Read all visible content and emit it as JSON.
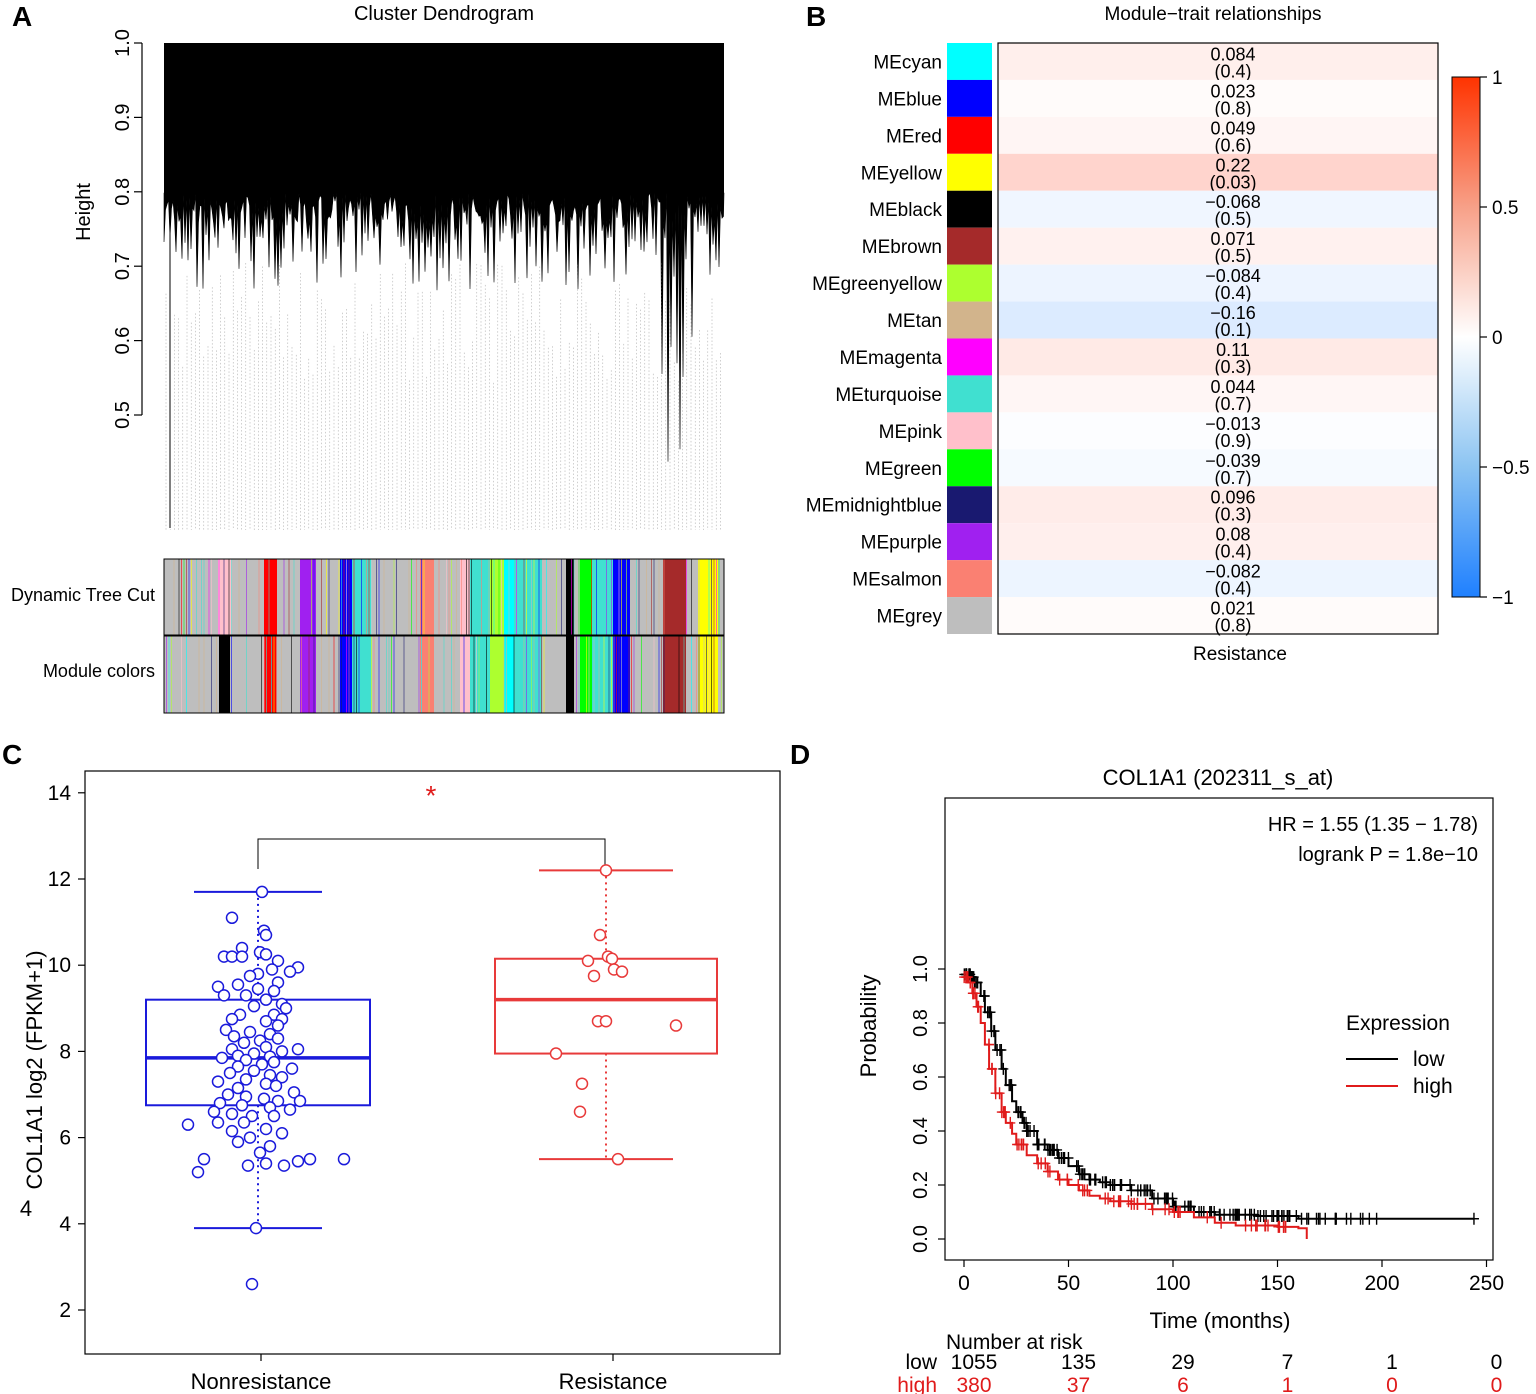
{
  "panels": {
    "A": {
      "letter": "A",
      "title": "Cluster Dendrogram",
      "ylabel": "Height",
      "yticks": [
        "0.5",
        "0.6",
        "0.7",
        "0.8",
        "0.9",
        "1.0"
      ],
      "track_labels": [
        "Dynamic Tree Cut",
        "Module colors"
      ]
    },
    "B": {
      "letter": "B",
      "title": "Module−trait relationships",
      "xlabel": "Resistance",
      "colorbar_ticks": [
        "1",
        "0.5",
        "0",
        "−0.5",
        "−1"
      ]
    },
    "C": {
      "letter": "C",
      "ylabel": "COL1A1 log2 (FPKM+1)",
      "extra_label": "4",
      "significance": "*",
      "yticks": [
        "2",
        "4",
        "6",
        "8",
        "10",
        "12",
        "14"
      ]
    },
    "D": {
      "letter": "D",
      "title": "COL1A1 (202311_s_at)",
      "hr_text": "HR = 1.55 (1.35 − 1.78)",
      "logrank_text": "logrank P = 1.8e−10",
      "ylabel": "Probability",
      "xlabel": "Time (months)",
      "yticks": [
        "0.0",
        "0.2",
        "0.4",
        "0.6",
        "0.8",
        "1.0"
      ],
      "xticks": [
        "0",
        "50",
        "100",
        "150",
        "200",
        "250"
      ],
      "legend_title": "Expression",
      "risk_title": "Number at risk"
    }
  },
  "colors": {
    "nonres": "#1a1adb",
    "res": "#e83a3a",
    "km_low": "#000000",
    "km_high": "#e01b1b",
    "star": "#e01b1b"
  },
  "chart_data": [
    {
      "type": "heatmap",
      "title": "Module−trait relationships",
      "xlabel": "Resistance",
      "color_range": [
        -1,
        1
      ],
      "modules": [
        {
          "name": "MEcyan",
          "color": "#00ffff",
          "cor": "0.084",
          "p": "(0.4)"
        },
        {
          "name": "MEblue",
          "color": "#0000ff",
          "cor": "0.023",
          "p": "(0.8)"
        },
        {
          "name": "MEred",
          "color": "#ff0000",
          "cor": "0.049",
          "p": "(0.6)"
        },
        {
          "name": "MEyellow",
          "color": "#ffff00",
          "cor": "0.22",
          "p": "(0.03)"
        },
        {
          "name": "MEblack",
          "color": "#000000",
          "cor": "−0.068",
          "p": "(0.5)"
        },
        {
          "name": "MEbrown",
          "color": "#a52a2a",
          "cor": "0.071",
          "p": "(0.5)"
        },
        {
          "name": "MEgreenyellow",
          "color": "#adff2f",
          "cor": "−0.084",
          "p": "(0.4)"
        },
        {
          "name": "MEtan",
          "color": "#d2b48c",
          "cor": "−0.16",
          "p": "(0.1)"
        },
        {
          "name": "MEmagenta",
          "color": "#ff00ff",
          "cor": "0.11",
          "p": "(0.3)"
        },
        {
          "name": "MEturquoise",
          "color": "#40e0d0",
          "cor": "0.044",
          "p": "(0.7)"
        },
        {
          "name": "MEpink",
          "color": "#ffc0cb",
          "cor": "−0.013",
          "p": "(0.9)"
        },
        {
          "name": "MEgreen",
          "color": "#00ff00",
          "cor": "−0.039",
          "p": "(0.7)"
        },
        {
          "name": "MEmidnightblue",
          "color": "#191970",
          "cor": "0.096",
          "p": "(0.3)"
        },
        {
          "name": "MEpurple",
          "color": "#a020f0",
          "cor": "0.08",
          "p": "(0.4)"
        },
        {
          "name": "MEsalmon",
          "color": "#fa8072",
          "cor": "−0.082",
          "p": "(0.4)"
        },
        {
          "name": "MEgrey",
          "color": "#bebebe",
          "cor": "0.021",
          "p": "(0.8)"
        }
      ]
    },
    {
      "type": "box",
      "ylabel": "COL1A1 log2 (FPKM+1)",
      "ylim": [
        1.5,
        14
      ],
      "categories": [
        "Nonresistance",
        "Resistance"
      ],
      "boxes": [
        {
          "name": "Nonresistance",
          "whisker_low": 3.9,
          "q1": 6.75,
          "median": 7.85,
          "q3": 9.2,
          "whisker_high": 11.7,
          "points": [
            [
              0.02,
              11.7
            ],
            [
              -0.13,
              11.1
            ],
            [
              0.03,
              10.8
            ],
            [
              0.04,
              10.7
            ],
            [
              -0.08,
              10.4
            ],
            [
              0.01,
              10.3
            ],
            [
              -0.17,
              10.2
            ],
            [
              -0.13,
              10.2
            ],
            [
              -0.08,
              10.2
            ],
            [
              0.04,
              10.25
            ],
            [
              0.1,
              10.1
            ],
            [
              0.2,
              9.95
            ],
            [
              0.07,
              9.9
            ],
            [
              0.16,
              9.85
            ],
            [
              0.0,
              9.8
            ],
            [
              -0.04,
              9.75
            ],
            [
              0.1,
              9.6
            ],
            [
              -0.2,
              9.5
            ],
            [
              -0.1,
              9.55
            ],
            [
              0.0,
              9.45
            ],
            [
              0.08,
              9.4
            ],
            [
              -0.17,
              9.3
            ],
            [
              -0.06,
              9.3
            ],
            [
              0.04,
              9.2
            ],
            [
              0.12,
              9.1
            ],
            [
              -0.02,
              9.05
            ],
            [
              0.14,
              9.0
            ],
            [
              0.08,
              8.85
            ],
            [
              0.12,
              8.75
            ],
            [
              0.04,
              8.7
            ],
            [
              -0.09,
              8.85
            ],
            [
              -0.13,
              8.75
            ],
            [
              0.1,
              8.6
            ],
            [
              -0.16,
              8.5
            ],
            [
              -0.04,
              8.45
            ],
            [
              0.06,
              8.4
            ],
            [
              -0.12,
              8.35
            ],
            [
              0.01,
              8.25
            ],
            [
              0.1,
              8.3
            ],
            [
              -0.07,
              8.2
            ],
            [
              0.04,
              8.1
            ],
            [
              -0.13,
              8.05
            ],
            [
              0.12,
              8.0
            ],
            [
              0.2,
              8.05
            ],
            [
              -0.02,
              7.95
            ],
            [
              -0.1,
              7.9
            ],
            [
              0.06,
              7.88
            ],
            [
              -0.18,
              7.85
            ],
            [
              -0.06,
              7.8
            ],
            [
              0.08,
              7.75
            ],
            [
              0.02,
              7.7
            ],
            [
              -0.1,
              7.65
            ],
            [
              0.17,
              7.6
            ],
            [
              -0.02,
              7.55
            ],
            [
              -0.14,
              7.5
            ],
            [
              0.06,
              7.45
            ],
            [
              0.12,
              7.4
            ],
            [
              -0.06,
              7.35
            ],
            [
              -0.2,
              7.3
            ],
            [
              0.04,
              7.25
            ],
            [
              0.09,
              7.2
            ],
            [
              -0.1,
              7.15
            ],
            [
              0.18,
              7.05
            ],
            [
              -0.15,
              7.0
            ],
            [
              -0.06,
              6.95
            ],
            [
              0.03,
              6.9
            ],
            [
              0.1,
              6.85
            ],
            [
              0.21,
              6.85
            ],
            [
              -0.19,
              6.8
            ],
            [
              -0.08,
              6.75
            ],
            [
              0.06,
              6.7
            ],
            [
              0.16,
              6.65
            ],
            [
              -0.22,
              6.6
            ],
            [
              -0.13,
              6.55
            ],
            [
              -0.03,
              6.5
            ],
            [
              0.08,
              6.5
            ],
            [
              -0.07,
              6.35
            ],
            [
              -0.2,
              6.35
            ],
            [
              -0.35,
              6.3
            ],
            [
              0.04,
              6.2
            ],
            [
              -0.13,
              6.15
            ],
            [
              0.12,
              6.1
            ],
            [
              -0.04,
              6.0
            ],
            [
              -0.1,
              5.9
            ],
            [
              0.06,
              5.8
            ],
            [
              0.01,
              5.65
            ],
            [
              -0.27,
              5.5
            ],
            [
              0.2,
              5.45
            ],
            [
              0.26,
              5.5
            ],
            [
              0.04,
              5.4
            ],
            [
              -0.05,
              5.35
            ],
            [
              0.13,
              5.35
            ],
            [
              0.43,
              5.5
            ],
            [
              -0.3,
              5.2
            ],
            [
              -0.01,
              3.9
            ],
            [
              -0.03,
              2.6
            ]
          ]
        },
        {
          "name": "Resistance",
          "whisker_low": 5.5,
          "q1": 7.95,
          "median": 9.2,
          "q3": 10.15,
          "whisker_high": 12.2,
          "points": [
            [
              0.0,
              12.2
            ],
            [
              -0.03,
              10.7
            ],
            [
              0.01,
              10.2
            ],
            [
              0.03,
              10.15
            ],
            [
              -0.09,
              10.1
            ],
            [
              0.04,
              9.9
            ],
            [
              0.08,
              9.85
            ],
            [
              -0.06,
              9.75
            ],
            [
              0.35,
              8.6
            ],
            [
              -0.04,
              8.7
            ],
            [
              0.0,
              8.7
            ],
            [
              -0.25,
              7.95
            ],
            [
              -0.12,
              7.25
            ],
            [
              -0.13,
              6.6
            ],
            [
              0.06,
              5.5
            ]
          ]
        }
      ]
    },
    {
      "type": "line",
      "title": "COL1A1 (202311_s_at)",
      "xlabel": "Time (months)",
      "ylabel": "Probability",
      "xlim": [
        0,
        250
      ],
      "ylim": [
        0,
        1
      ],
      "series": [
        {
          "name": "low",
          "color": "#000000",
          "x": [
            0,
            3,
            5,
            8,
            10,
            13,
            15,
            18,
            20,
            23,
            25,
            28,
            30,
            35,
            40,
            45,
            50,
            55,
            60,
            65,
            70,
            80,
            90,
            100,
            110,
            120,
            130,
            140,
            150,
            160,
            165,
            200,
            244
          ],
          "y": [
            0.98,
            0.97,
            0.95,
            0.9,
            0.84,
            0.77,
            0.7,
            0.63,
            0.57,
            0.51,
            0.47,
            0.43,
            0.4,
            0.35,
            0.33,
            0.3,
            0.27,
            0.24,
            0.22,
            0.21,
            0.2,
            0.18,
            0.15,
            0.12,
            0.1,
            0.09,
            0.09,
            0.085,
            0.085,
            0.075,
            0.075,
            0.075,
            0.075
          ]
        },
        {
          "name": "high",
          "color": "#e01b1b",
          "x": [
            0,
            2,
            4,
            6,
            8,
            10,
            12,
            15,
            18,
            20,
            23,
            25,
            30,
            35,
            40,
            45,
            50,
            55,
            60,
            65,
            70,
            80,
            90,
            100,
            110,
            120,
            130,
            140,
            150,
            160,
            164
          ],
          "y": [
            0.97,
            0.95,
            0.91,
            0.86,
            0.8,
            0.72,
            0.63,
            0.54,
            0.47,
            0.43,
            0.39,
            0.35,
            0.31,
            0.28,
            0.25,
            0.22,
            0.2,
            0.18,
            0.16,
            0.15,
            0.14,
            0.13,
            0.11,
            0.1,
            0.08,
            0.06,
            0.05,
            0.05,
            0.045,
            0.04,
            0.0
          ]
        }
      ],
      "risk_table": {
        "times": [
          "0",
          "50",
          "100",
          "150",
          "200",
          "250"
        ],
        "rows": [
          {
            "name": "low",
            "counts": [
              "1055",
              "135",
              "29",
              "7",
              "1",
              "0"
            ]
          },
          {
            "name": "high",
            "counts": [
              "380",
              "37",
              "6",
              "1",
              "0",
              "0"
            ]
          }
        ]
      }
    }
  ]
}
